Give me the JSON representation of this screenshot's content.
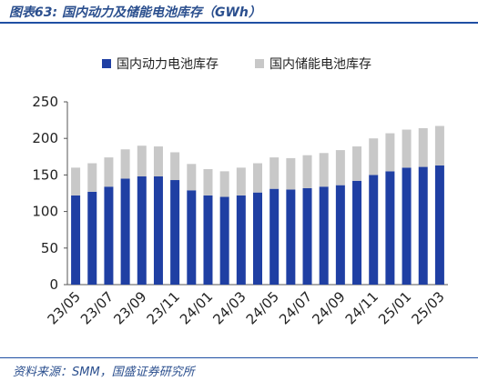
{
  "header": {
    "title": "图表63:  国内动力及储能电池库存（GWh）"
  },
  "footer": {
    "source": "资料来源：SMM，国盛证券研究所"
  },
  "colors": {
    "power": "#1f3fa3",
    "storage": "#c8c8c8",
    "axis": "#555555",
    "rule": "#1f4fa3"
  },
  "chart_data": {
    "type": "bar",
    "stacked": true,
    "title": "",
    "xlabel": "",
    "ylabel": "",
    "ylim": [
      0,
      250
    ],
    "yticks": [
      0,
      50,
      100,
      150,
      200,
      250
    ],
    "legend_position": "top",
    "categories": [
      "23/05",
      "23/06",
      "23/07",
      "23/08",
      "23/09",
      "23/10",
      "23/11",
      "23/12",
      "24/01",
      "24/02",
      "24/03",
      "24/04",
      "24/05",
      "24/06",
      "24/07",
      "24/08",
      "24/09",
      "24/10",
      "24/11",
      "24/12",
      "25/01",
      "25/02",
      "25/03"
    ],
    "xtick_labels": [
      "23/05",
      "23/07",
      "23/09",
      "23/11",
      "24/01",
      "24/03",
      "24/05",
      "24/07",
      "24/09",
      "24/11",
      "25/01",
      "25/03"
    ],
    "series": [
      {
        "name": "国内动力电池库存",
        "values": [
          122,
          127,
          134,
          145,
          148,
          148,
          143,
          129,
          122,
          120,
          122,
          126,
          131,
          130,
          132,
          134,
          136,
          142,
          150,
          155,
          160,
          161,
          163
        ]
      },
      {
        "name": "国内储能电池库存",
        "values": [
          38,
          39,
          40,
          40,
          42,
          41,
          38,
          36,
          36,
          35,
          38,
          40,
          43,
          43,
          45,
          46,
          48,
          47,
          50,
          52,
          52,
          53,
          54
        ]
      }
    ]
  }
}
